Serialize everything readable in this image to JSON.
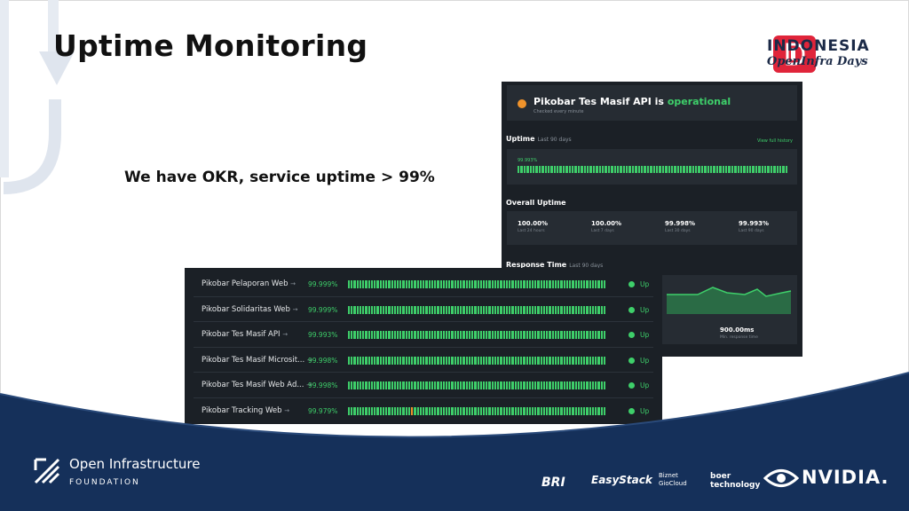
{
  "slide": {
    "title": "Uptime Monitoring",
    "okr_text": "We have OKR, service uptime > 99%"
  },
  "event_logo": {
    "line1": "INDONESIA",
    "line2": "OpenInfra Days",
    "brand_color": "#e0243a"
  },
  "status_panel": {
    "service_name": "Pikobar Tes Masif API is",
    "status_word": "operational",
    "subtitle": "Checked every minute",
    "uptime_label": "Uptime",
    "uptime_range": "Last 90 days",
    "history_link": "View full history",
    "bar_percent": "99.993%",
    "overall_label": "Overall Uptime",
    "overall": [
      {
        "value": "100.00%",
        "label": "Last 24 hours"
      },
      {
        "value": "100.00%",
        "label": "Last 7 days"
      },
      {
        "value": "99.998%",
        "label": "Last 30 days"
      },
      {
        "value": "99.993%",
        "label": "Last 90 days"
      }
    ],
    "response_label": "Response Time",
    "response_range": "Last 90 days",
    "min_response_value": "900.00ms",
    "min_response_label": "Min. response time"
  },
  "monitors": [
    {
      "name": "Pikobar Pelaporan Web",
      "arrow": "→",
      "uptime": "99.999%",
      "status": "Up"
    },
    {
      "name": "Pikobar Solidaritas Web",
      "arrow": "→",
      "uptime": "99.999%",
      "status": "Up"
    },
    {
      "name": "Pikobar Tes Masif API",
      "arrow": "→",
      "uptime": "99.993%",
      "status": "Up"
    },
    {
      "name": "Pikobar Tes Masif Microsit...",
      "arrow": "→",
      "uptime": "99.998%",
      "status": "Up"
    },
    {
      "name": "Pikobar Tes Masif Web Ad...",
      "arrow": "→",
      "uptime": "99.998%",
      "status": "Up"
    },
    {
      "name": "Pikobar Tracking Web",
      "arrow": "→",
      "uptime": "99.979%",
      "status": "Up"
    }
  ],
  "footer": {
    "org_line1": "Open Infrastructure",
    "org_line2": "FOUNDATION",
    "sponsors": [
      "BRI",
      "EasyStack",
      "Biznet GioCloud",
      "boer technology",
      "NVIDIA."
    ]
  },
  "colors": {
    "footer_navy": "#15305a",
    "ok_green": "#3ecf6a",
    "warn_orange": "#f0932b",
    "panel_bg": "#1b2026"
  }
}
